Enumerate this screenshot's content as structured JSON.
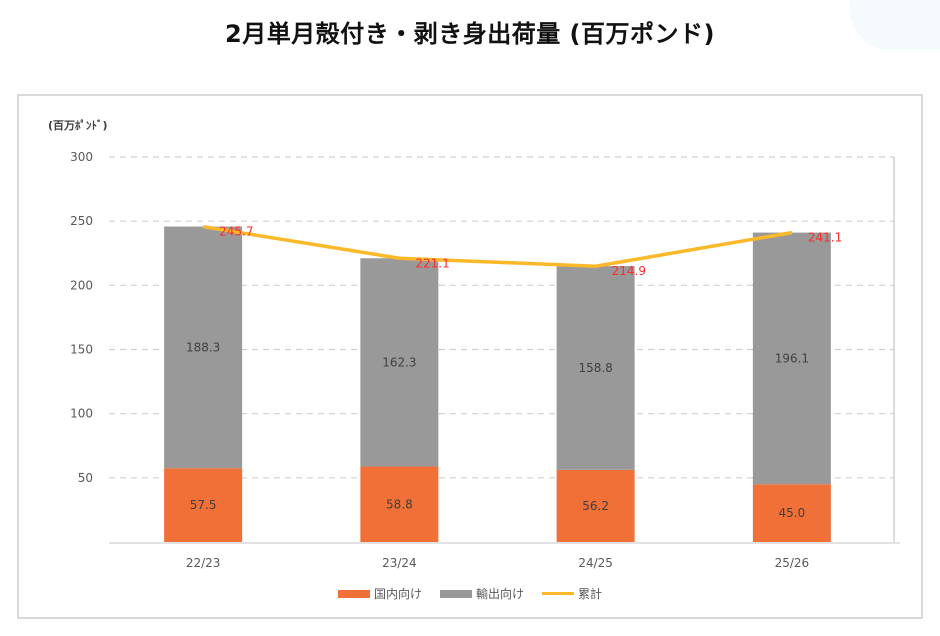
{
  "page": {
    "title": "2月単月殻付き・剥き身出荷量 (百万ポンド)"
  },
  "colors": {
    "domestic": "#f07038",
    "export": "#999999",
    "total": "#fbb829",
    "total_label": "#ff2a2a",
    "grid": "#d0d0d0",
    "axis_text": "#595959"
  },
  "chart_data": {
    "type": "bar",
    "stacked": true,
    "title": "2月単月殻付き・剥き身出荷量 (百万ポンド)",
    "ylabel": "(百万ﾎﾟﾝﾄﾞ)",
    "xlabel": "",
    "ylim": [
      0,
      300
    ],
    "yticks": [
      "50",
      "100",
      "150",
      "200",
      "250",
      "300"
    ],
    "ytick_values": [
      50,
      100,
      150,
      200,
      250,
      300
    ],
    "categories": [
      "22/23",
      "23/24",
      "24/25",
      "25/26"
    ],
    "grid": true,
    "legend_position": "bottom",
    "series": [
      {
        "name": "国内向け",
        "kind": "bar",
        "values": [
          57.5,
          58.8,
          56.2,
          45.0
        ],
        "labels": [
          "57.5",
          "58.8",
          "56.2",
          "45.0"
        ]
      },
      {
        "name": "輸出向け",
        "kind": "bar",
        "values": [
          188.3,
          162.3,
          158.8,
          196.1
        ],
        "labels": [
          "188.3",
          "162.3",
          "158.8",
          "196.1"
        ]
      },
      {
        "name": "累計",
        "kind": "line",
        "values": [
          245.7,
          221.1,
          214.9,
          241.1
        ],
        "labels": [
          "245.7",
          "221.1",
          "214.9",
          "241.1"
        ]
      }
    ]
  }
}
